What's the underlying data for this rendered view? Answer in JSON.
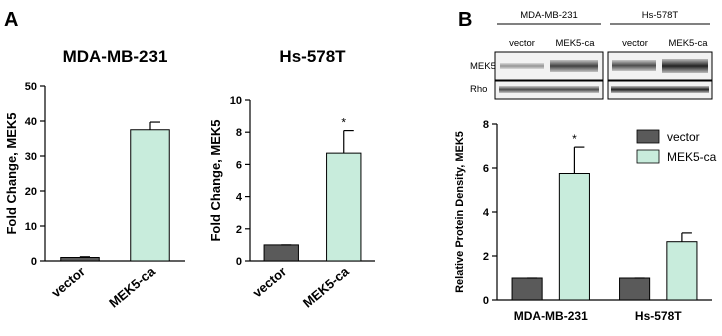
{
  "panel_labels": [
    "A",
    "B"
  ],
  "blot": {
    "cell_lines": [
      "MDA-MB-231",
      "Hs-578T"
    ],
    "conditions": [
      "vector",
      "MEK5-ca"
    ],
    "rows": [
      "MEK5",
      "Rho"
    ]
  },
  "chart_data": [
    {
      "type": "bar",
      "title": "MDA-MB-231",
      "y_label": "Fold Change, MEK5",
      "categories": [
        "vector",
        "MEK5-ca"
      ],
      "values": [
        1,
        37.5
      ],
      "errors": [
        0.2,
        2.2
      ],
      "significance": [
        null,
        null
      ],
      "colors": [
        "#5a5a5a",
        "#c8ecdc"
      ],
      "ylim": [
        0,
        50
      ],
      "yticks": [
        0,
        10,
        20,
        30,
        40,
        50
      ]
    },
    {
      "type": "bar",
      "title": "Hs-578T",
      "y_label": "Fold Change, MEK5",
      "categories": [
        "vector",
        "MEK5-ca"
      ],
      "values": [
        1,
        6.7
      ],
      "errors": [
        0,
        1.4
      ],
      "significance": [
        null,
        "*"
      ],
      "colors": [
        "#5a5a5a",
        "#c8ecdc"
      ],
      "ylim": [
        0,
        10
      ],
      "yticks": [
        0,
        2,
        4,
        6,
        8,
        10
      ]
    },
    {
      "type": "grouped_bar",
      "y_label": "Relative Protein Density, MEK5",
      "categories": [
        "MDA-MB-231",
        "Hs-578T"
      ],
      "series": [
        {
          "name": "vector",
          "color": "#5a5a5a",
          "values": [
            1,
            1
          ],
          "errors": [
            0,
            0
          ],
          "significance": [
            null,
            null
          ]
        },
        {
          "name": "MEK5-ca",
          "color": "#c8ecdc",
          "values": [
            5.75,
            2.65
          ],
          "errors": [
            1.2,
            0.4
          ],
          "significance": [
            "*",
            null
          ]
        }
      ],
      "ylim": [
        0,
        8
      ],
      "yticks": [
        0,
        2,
        4,
        6,
        8
      ],
      "legend": "upper right"
    }
  ]
}
